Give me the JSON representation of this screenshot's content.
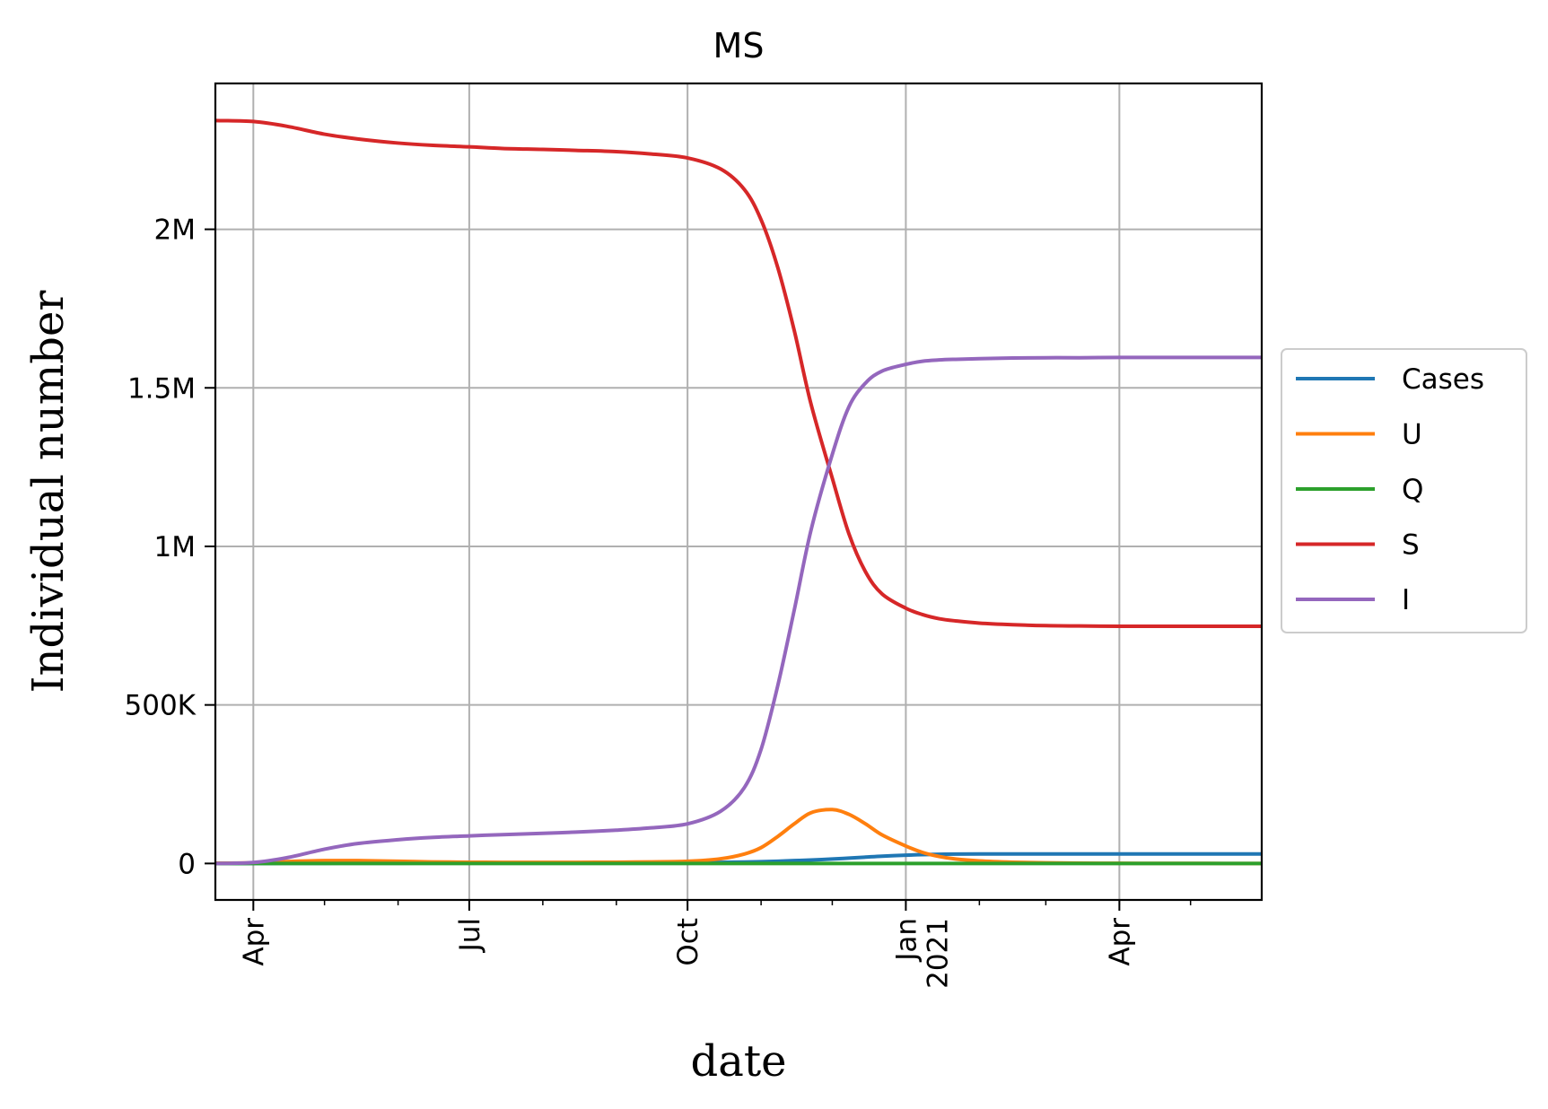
{
  "chart_data": {
    "type": "line",
    "title": "MS",
    "xlabel": "date",
    "ylabel": "Individual number",
    "xlim": [
      "2020-03-16",
      "2021-05-31"
    ],
    "ylim": [
      -115000,
      2460000
    ],
    "grid": true,
    "legend_position": "right-outside",
    "x_ticks": [
      {
        "date": "2020-04-01",
        "label": "Apr"
      },
      {
        "date": "2020-07-01",
        "label": "Jul"
      },
      {
        "date": "2020-10-01",
        "label": "Oct"
      },
      {
        "date": "2021-01-01",
        "label": "Jan",
        "label2": "2021"
      },
      {
        "date": "2021-04-01",
        "label": "Apr"
      }
    ],
    "y_ticks": [
      {
        "value": 0,
        "label": "0"
      },
      {
        "value": 500000,
        "label": "500K"
      },
      {
        "value": 1000000,
        "label": "1M"
      },
      {
        "value": 1500000,
        "label": "1.5M"
      },
      {
        "value": 2000000,
        "label": "2M"
      }
    ],
    "x": [
      "2020-03-16",
      "2020-04-01",
      "2020-04-15",
      "2020-05-01",
      "2020-05-15",
      "2020-06-01",
      "2020-06-15",
      "2020-07-01",
      "2020-07-15",
      "2020-08-01",
      "2020-08-15",
      "2020-09-01",
      "2020-09-15",
      "2020-10-01",
      "2020-10-15",
      "2020-10-25",
      "2020-11-01",
      "2020-11-08",
      "2020-11-15",
      "2020-11-22",
      "2020-12-01",
      "2020-12-08",
      "2020-12-15",
      "2020-12-22",
      "2021-01-01",
      "2021-01-08",
      "2021-01-15",
      "2021-01-22",
      "2021-02-01",
      "2021-02-15",
      "2021-03-01",
      "2021-03-15",
      "2021-04-01",
      "2021-04-15",
      "2021-05-01",
      "2021-05-15",
      "2021-05-31"
    ],
    "series": [
      {
        "name": "Cases",
        "color": "#1f77b4",
        "values": [
          0,
          0,
          200,
          400,
          600,
          800,
          1000,
          1200,
          1400,
          1600,
          1800,
          2000,
          2300,
          2700,
          3500,
          4500,
          5500,
          7000,
          9000,
          11000,
          14000,
          17000,
          20000,
          23000,
          26000,
          28000,
          29000,
          29500,
          30000,
          30000,
          30000,
          30000,
          30000,
          30000,
          30000,
          30000,
          30000
        ]
      },
      {
        "name": "U",
        "color": "#ff7f0e",
        "values": [
          1000,
          2000,
          6000,
          9000,
          9000,
          7000,
          5000,
          4000,
          3500,
          3500,
          3500,
          4000,
          5000,
          7000,
          15000,
          30000,
          50000,
          85000,
          125000,
          160000,
          170000,
          155000,
          125000,
          90000,
          55000,
          35000,
          22000,
          14000,
          8000,
          4000,
          2000,
          1000,
          500,
          300,
          200,
          100,
          100
        ]
      },
      {
        "name": "Q",
        "color": "#2ca02c",
        "values": [
          0,
          0,
          0,
          0,
          0,
          0,
          0,
          0,
          0,
          0,
          0,
          0,
          0,
          0,
          0,
          0,
          0,
          0,
          0,
          0,
          0,
          0,
          0,
          0,
          0,
          0,
          0,
          0,
          0,
          0,
          0,
          0,
          0,
          0,
          0,
          0,
          0
        ]
      },
      {
        "name": "S",
        "color": "#d62728",
        "values": [
          2343000,
          2340000,
          2325000,
          2300000,
          2285000,
          2272000,
          2265000,
          2260000,
          2255000,
          2252000,
          2249000,
          2245000,
          2238000,
          2225000,
          2190000,
          2125000,
          2030000,
          1880000,
          1680000,
          1450000,
          1215000,
          1040000,
          920000,
          850000,
          805000,
          785000,
          772000,
          765000,
          758000,
          753000,
          750000,
          749000,
          748000,
          748000,
          748000,
          748000,
          748000
        ]
      },
      {
        "name": "I",
        "color": "#9467bd",
        "values": [
          0,
          3000,
          18000,
          45000,
          63000,
          75000,
          82000,
          87000,
          91000,
          95000,
          99000,
          105000,
          112000,
          125000,
          165000,
          240000,
          360000,
          560000,
          800000,
          1050000,
          1290000,
          1440000,
          1515000,
          1553000,
          1574000,
          1584000,
          1588000,
          1590000,
          1592000,
          1594000,
          1595000,
          1595000,
          1596000,
          1596000,
          1596000,
          1596000,
          1596000
        ]
      }
    ]
  }
}
